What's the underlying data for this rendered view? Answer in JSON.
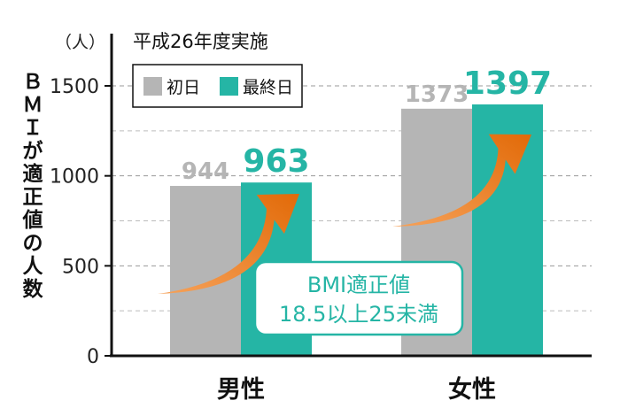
{
  "chart_data": {
    "type": "bar",
    "title": "平成26年度実施",
    "unit_label": "（人）",
    "ylabel": "ＢＭＩが適正値の人数",
    "ylim": [
      0,
      1500
    ],
    "yticks": [
      0,
      500,
      1000,
      1500
    ],
    "grid": true,
    "legend_position": "top-left",
    "categories": [
      "男性",
      "女性"
    ],
    "series": [
      {
        "name": "初日",
        "values": [
          944,
          1373
        ],
        "color": "#b5b5b5",
        "label_color": "#b5b5b5"
      },
      {
        "name": "最終日",
        "values": [
          963,
          1397
        ],
        "color": "#25b5a5",
        "label_color": "#25b5a5"
      }
    ],
    "annotation": {
      "lines": [
        "BMI適正値",
        "18.5以上25未満"
      ],
      "color": "#25b5a5"
    },
    "arrow_color": "#ee7412"
  }
}
